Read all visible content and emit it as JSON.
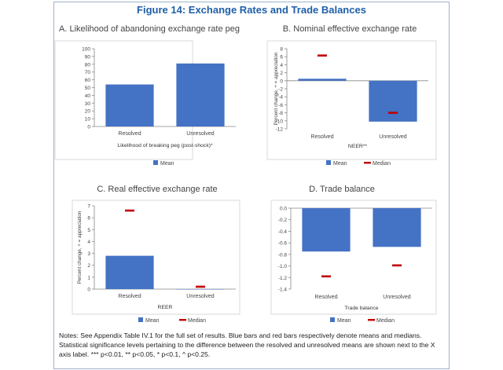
{
  "figure_title": "Figure 14: Exchange Rates and Trade Balances",
  "notes": "Notes: See Appendix Table IV.1 for the full set of results. Blue bars and red bars respectively denote means and medians. Statistical significance levels pertaining to the difference between the resolved and unresolved means are shown next to the X axis label. *** p<0.01, ** p<0.05, * p<0.1, ^ p<0.25.",
  "colors": {
    "mean": "#4472c4",
    "median": "#c00000",
    "title": "#1f5fa8"
  },
  "chart_data": [
    {
      "type": "bar",
      "panel_title": "A. Likelihood of abandoning exchange rate peg",
      "categories": [
        "Resolved",
        "Unresolved"
      ],
      "series": [
        {
          "name": "Mean",
          "values": [
            54,
            81
          ]
        }
      ],
      "xlabel": "Likelihood of breaking peg (post-shock)*",
      "ylabel": "",
      "ylim": [
        0,
        100
      ],
      "yticks": [
        "0",
        "10",
        "20",
        "30",
        "40",
        "50",
        "60",
        "70",
        "80",
        "90",
        "100"
      ],
      "legend": [
        "Mean"
      ]
    },
    {
      "type": "bar",
      "panel_title": "B. Nominal effective exchange rate",
      "categories": [
        "Resolved",
        "Unresolved"
      ],
      "series": [
        {
          "name": "Mean",
          "values": [
            0.5,
            -10.2
          ]
        },
        {
          "name": "Median",
          "values": [
            6.3,
            -8.0
          ]
        }
      ],
      "xlabel": "NEER**",
      "ylabel": "Percent change, + = appreciation",
      "ylim": [
        -12,
        8
      ],
      "yticks": [
        "8",
        "6",
        "4",
        "2",
        "0",
        "-2",
        "-4",
        "-6",
        "-8",
        "-10",
        "-12"
      ],
      "legend": [
        "Mean",
        "Median"
      ]
    },
    {
      "type": "bar",
      "panel_title": "C. Real effective exchange rate",
      "categories": [
        "Resolved",
        "Unresolved"
      ],
      "series": [
        {
          "name": "Mean",
          "values": [
            2.8,
            0.0
          ]
        },
        {
          "name": "Median",
          "values": [
            6.6,
            0.2
          ]
        }
      ],
      "xlabel": "REER",
      "ylabel": "Percent change, + = appreciation",
      "ylim": [
        0,
        7
      ],
      "yticks": [
        "0",
        "1",
        "2",
        "3",
        "4",
        "5",
        "6",
        "7"
      ],
      "legend": [
        "Mean",
        "Median"
      ]
    },
    {
      "type": "bar",
      "panel_title": "D. Trade balance",
      "categories": [
        "Resolved",
        "Unresolved"
      ],
      "series": [
        {
          "name": "Mean",
          "values": [
            -0.75,
            -0.67
          ]
        },
        {
          "name": "Median",
          "values": [
            -1.18,
            -0.99
          ]
        }
      ],
      "xlabel": "Trade balance",
      "ylabel": "",
      "ylim": [
        -1.4,
        0
      ],
      "yticks": [
        "0.0",
        "-0.2",
        "-0.4",
        "-0.6",
        "-0.8",
        "-1.0",
        "-1.2",
        "-1.4"
      ],
      "legend": [
        "Mean",
        "Median"
      ]
    }
  ]
}
